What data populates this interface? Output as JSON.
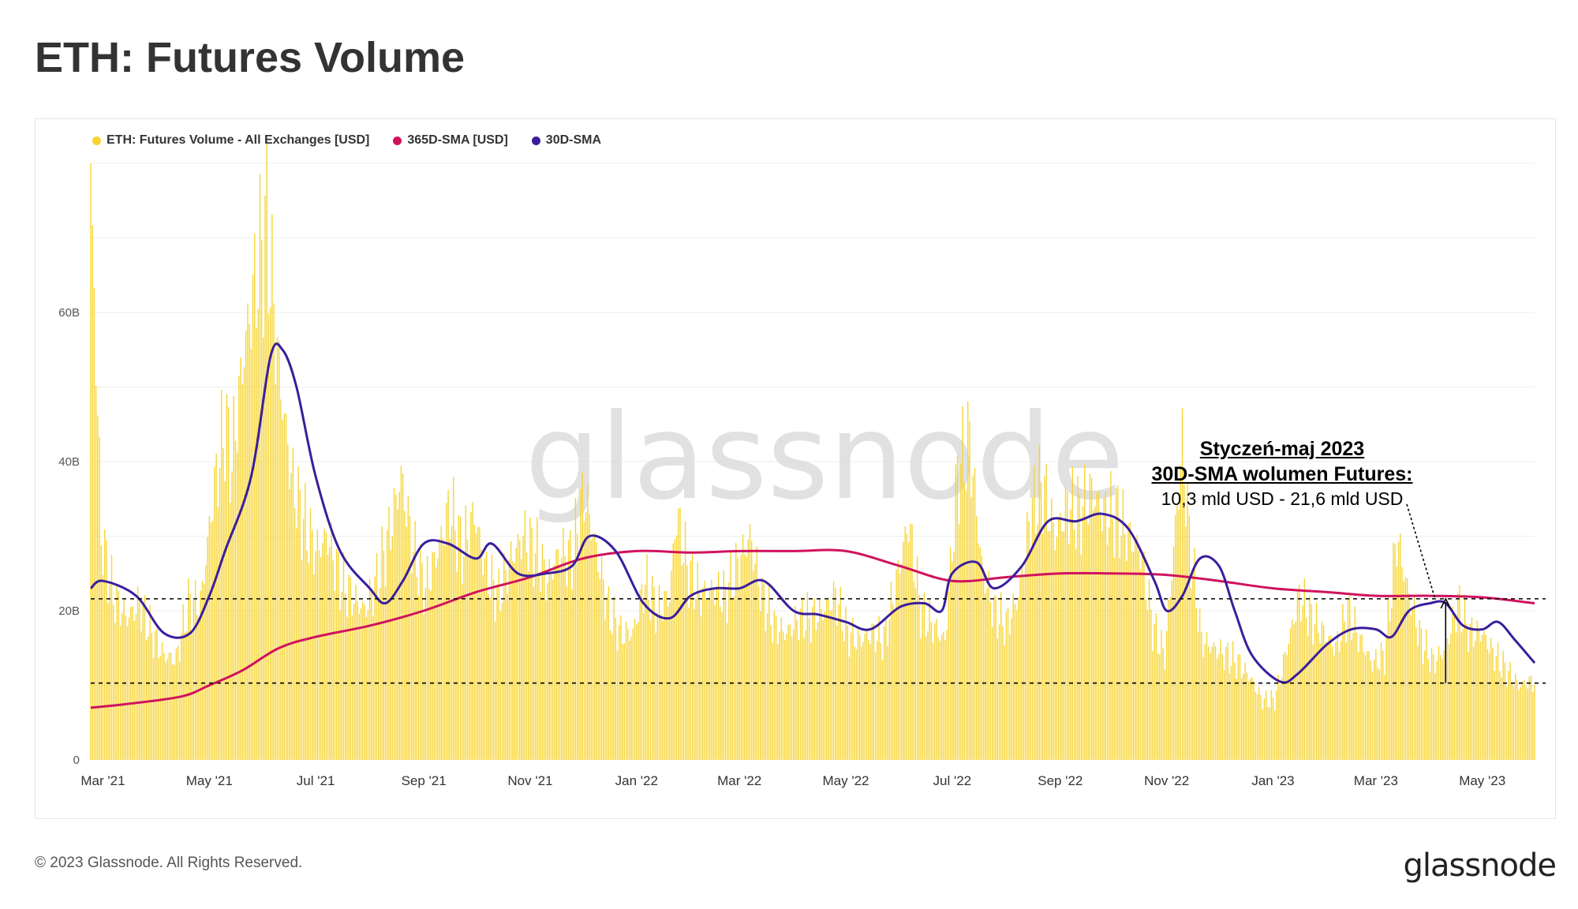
{
  "page": {
    "title": "ETH: Futures Volume",
    "copyright": "© 2023 Glassnode. All Rights Reserved.",
    "brand": "glassnode",
    "watermark": "glassnode"
  },
  "colors": {
    "volume": "#F7D430",
    "sma365": "#D0125E",
    "sma30": "#3A1E9C",
    "grid": "#eeeeee",
    "text": "#333333"
  },
  "annotation": {
    "line1": "Styczeń-maj 2023",
    "line2": "30D-SMA wolumen Futures:",
    "line3": "10,3 mld USD - 21,6 mld USD"
  },
  "chart_data": {
    "type": "bar",
    "x_start": "2021-02-22",
    "x_end": "2023-05-31",
    "ylim": [
      0,
      80000000000
    ],
    "y_ticks": [
      {
        "value": 0,
        "label": "0"
      },
      {
        "value": 20000000000,
        "label": "20B"
      },
      {
        "value": 40000000000,
        "label": "40B"
      },
      {
        "value": 60000000000,
        "label": "60B"
      }
    ],
    "x_ticks": [
      {
        "date": "2021-03-01",
        "label": "Mar '21"
      },
      {
        "date": "2021-05-01",
        "label": "May '21"
      },
      {
        "date": "2021-07-01",
        "label": "Jul '21"
      },
      {
        "date": "2021-09-01",
        "label": "Sep '21"
      },
      {
        "date": "2021-11-01",
        "label": "Nov '21"
      },
      {
        "date": "2022-01-01",
        "label": "Jan '22"
      },
      {
        "date": "2022-03-01",
        "label": "Mar '22"
      },
      {
        "date": "2022-05-01",
        "label": "May '22"
      },
      {
        "date": "2022-07-01",
        "label": "Jul '22"
      },
      {
        "date": "2022-09-01",
        "label": "Sep '22"
      },
      {
        "date": "2022-11-01",
        "label": "Nov '22"
      },
      {
        "date": "2023-01-01",
        "label": "Jan '23"
      },
      {
        "date": "2023-03-01",
        "label": "Mar '23"
      },
      {
        "date": "2023-05-01",
        "label": "May '23"
      }
    ],
    "reference_lines": [
      21600000000,
      10300000000
    ],
    "legend_position": "top-left",
    "grid": true,
    "series": [
      {
        "name": "ETH: Futures Volume - All Exchanges [USD]",
        "type": "bar",
        "values": [
          [
            "2021-02-22",
            80000000000
          ],
          [
            "2021-02-28",
            30000000000
          ],
          [
            "2021-03-07",
            22000000000
          ],
          [
            "2021-03-15",
            19000000000
          ],
          [
            "2021-03-22",
            21000000000
          ],
          [
            "2021-03-29",
            17000000000
          ],
          [
            "2021-04-05",
            14000000000
          ],
          [
            "2021-04-12",
            13500000000
          ],
          [
            "2021-04-19",
            21000000000
          ],
          [
            "2021-04-26",
            21000000000
          ],
          [
            "2021-05-03",
            35000000000
          ],
          [
            "2021-05-10",
            45000000000
          ],
          [
            "2021-05-14",
            40000000000
          ],
          [
            "2021-05-21",
            55000000000
          ],
          [
            "2021-05-28",
            65000000000
          ],
          [
            "2021-06-03",
            72000000000
          ],
          [
            "2021-06-10",
            52000000000
          ],
          [
            "2021-06-17",
            38000000000
          ],
          [
            "2021-06-24",
            32000000000
          ],
          [
            "2021-07-01",
            28000000000
          ],
          [
            "2021-07-08",
            30000000000
          ],
          [
            "2021-07-15",
            24000000000
          ],
          [
            "2021-07-22",
            22000000000
          ],
          [
            "2021-07-29",
            20000000000
          ],
          [
            "2021-08-05",
            24000000000
          ],
          [
            "2021-08-12",
            30000000000
          ],
          [
            "2021-08-19",
            38000000000
          ],
          [
            "2021-08-26",
            28000000000
          ],
          [
            "2021-09-02",
            23000000000
          ],
          [
            "2021-09-09",
            28000000000
          ],
          [
            "2021-09-16",
            34000000000
          ],
          [
            "2021-09-23",
            28000000000
          ],
          [
            "2021-09-30",
            33000000000
          ],
          [
            "2021-10-07",
            25000000000
          ],
          [
            "2021-10-14",
            22000000000
          ],
          [
            "2021-10-21",
            27000000000
          ],
          [
            "2021-10-28",
            30000000000
          ],
          [
            "2021-11-04",
            28000000000
          ],
          [
            "2021-11-11",
            24000000000
          ],
          [
            "2021-11-18",
            28000000000
          ],
          [
            "2021-11-25",
            27000000000
          ],
          [
            "2021-12-02",
            36000000000
          ],
          [
            "2021-12-09",
            28000000000
          ],
          [
            "2021-12-16",
            20000000000
          ],
          [
            "2021-12-23",
            17000000000
          ],
          [
            "2021-12-30",
            17000000000
          ],
          [
            "2022-01-06",
            24000000000
          ],
          [
            "2022-01-13",
            20000000000
          ],
          [
            "2022-01-20",
            22000000000
          ],
          [
            "2022-01-24",
            33000000000
          ],
          [
            "2022-01-31",
            25000000000
          ],
          [
            "2022-02-07",
            22000000000
          ],
          [
            "2022-02-14",
            23000000000
          ],
          [
            "2022-02-21",
            22000000000
          ],
          [
            "2022-02-28",
            26000000000
          ],
          [
            "2022-03-07",
            30000000000
          ],
          [
            "2022-03-14",
            22000000000
          ],
          [
            "2022-03-21",
            18000000000
          ],
          [
            "2022-03-28",
            17000000000
          ],
          [
            "2022-04-04",
            19000000000
          ],
          [
            "2022-04-11",
            19000000000
          ],
          [
            "2022-04-18",
            20000000000
          ],
          [
            "2022-04-25",
            22000000000
          ],
          [
            "2022-05-02",
            17000000000
          ],
          [
            "2022-05-09",
            16000000000
          ],
          [
            "2022-05-16",
            17000000000
          ],
          [
            "2022-05-23",
            16000000000
          ],
          [
            "2022-05-30",
            24000000000
          ],
          [
            "2022-06-06",
            32000000000
          ],
          [
            "2022-06-13",
            20000000000
          ],
          [
            "2022-06-20",
            18000000000
          ],
          [
            "2022-06-27",
            16000000000
          ],
          [
            "2022-07-04",
            38000000000
          ],
          [
            "2022-07-11",
            43000000000
          ],
          [
            "2022-07-18",
            26000000000
          ],
          [
            "2022-07-25",
            20000000000
          ],
          [
            "2022-08-01",
            18000000000
          ],
          [
            "2022-08-08",
            22000000000
          ],
          [
            "2022-08-15",
            33000000000
          ],
          [
            "2022-08-22",
            37000000000
          ],
          [
            "2022-08-29",
            30000000000
          ],
          [
            "2022-09-05",
            34000000000
          ],
          [
            "2022-09-12",
            33000000000
          ],
          [
            "2022-09-19",
            36000000000
          ],
          [
            "2022-09-26",
            33000000000
          ],
          [
            "2022-10-03",
            33000000000
          ],
          [
            "2022-10-10",
            30000000000
          ],
          [
            "2022-10-17",
            28000000000
          ],
          [
            "2022-10-24",
            18000000000
          ],
          [
            "2022-10-31",
            14000000000
          ],
          [
            "2022-11-07",
            34000000000
          ],
          [
            "2022-11-10",
            42000000000
          ],
          [
            "2022-11-14",
            30000000000
          ],
          [
            "2022-11-21",
            16000000000
          ],
          [
            "2022-11-28",
            15000000000
          ],
          [
            "2022-12-05",
            14000000000
          ],
          [
            "2022-12-12",
            13000000000
          ],
          [
            "2022-12-19",
            11000000000
          ],
          [
            "2022-12-26",
            8000000000
          ],
          [
            "2023-01-02",
            8000000000
          ],
          [
            "2023-01-09",
            15000000000
          ],
          [
            "2023-01-16",
            22000000000
          ],
          [
            "2023-01-23",
            19000000000
          ],
          [
            "2023-01-30",
            17000000000
          ],
          [
            "2023-02-06",
            15000000000
          ],
          [
            "2023-02-13",
            20000000000
          ],
          [
            "2023-02-20",
            16000000000
          ],
          [
            "2023-02-27",
            13000000000
          ],
          [
            "2023-03-06",
            14000000000
          ],
          [
            "2023-03-13",
            30000000000
          ],
          [
            "2023-03-20",
            22000000000
          ],
          [
            "2023-03-27",
            16000000000
          ],
          [
            "2023-04-03",
            13000000000
          ],
          [
            "2023-04-10",
            15000000000
          ],
          [
            "2023-04-17",
            21000000000
          ],
          [
            "2023-04-24",
            17000000000
          ],
          [
            "2023-05-01",
            17000000000
          ],
          [
            "2023-05-08",
            14000000000
          ],
          [
            "2023-05-15",
            12000000000
          ],
          [
            "2023-05-22",
            10000000000
          ],
          [
            "2023-05-29",
            10500000000
          ]
        ]
      },
      {
        "name": "365D-SMA [USD]",
        "type": "line",
        "values": [
          [
            "2021-02-22",
            7000000000
          ],
          [
            "2021-03-15",
            7500000000
          ],
          [
            "2021-04-15",
            8500000000
          ],
          [
            "2021-05-01",
            10000000000
          ],
          [
            "2021-05-20",
            12000000000
          ],
          [
            "2021-06-10",
            15000000000
          ],
          [
            "2021-07-01",
            16500000000
          ],
          [
            "2021-08-01",
            18000000000
          ],
          [
            "2021-09-01",
            20000000000
          ],
          [
            "2021-10-01",
            22500000000
          ],
          [
            "2021-11-01",
            24500000000
          ],
          [
            "2021-12-01",
            27000000000
          ],
          [
            "2022-01-01",
            28000000000
          ],
          [
            "2022-02-01",
            27800000000
          ],
          [
            "2022-03-01",
            28000000000
          ],
          [
            "2022-04-01",
            28000000000
          ],
          [
            "2022-05-01",
            28000000000
          ],
          [
            "2022-06-01",
            26000000000
          ],
          [
            "2022-07-01",
            24000000000
          ],
          [
            "2022-08-01",
            24500000000
          ],
          [
            "2022-09-01",
            25000000000
          ],
          [
            "2022-10-01",
            25000000000
          ],
          [
            "2022-11-01",
            24800000000
          ],
          [
            "2022-12-01",
            24000000000
          ],
          [
            "2023-01-01",
            23000000000
          ],
          [
            "2023-02-01",
            22500000000
          ],
          [
            "2023-03-01",
            22000000000
          ],
          [
            "2023-04-01",
            22000000000
          ],
          [
            "2023-05-01",
            21800000000
          ],
          [
            "2023-05-31",
            21000000000
          ]
        ]
      },
      {
        "name": "30D-SMA",
        "type": "line",
        "values": [
          [
            "2021-02-22",
            23000000000
          ],
          [
            "2021-03-01",
            24000000000
          ],
          [
            "2021-03-20",
            22000000000
          ],
          [
            "2021-04-05",
            17000000000
          ],
          [
            "2021-04-20",
            17000000000
          ],
          [
            "2021-05-01",
            22000000000
          ],
          [
            "2021-05-10",
            28000000000
          ],
          [
            "2021-05-25",
            38000000000
          ],
          [
            "2021-06-05",
            54000000000
          ],
          [
            "2021-06-12",
            55000000000
          ],
          [
            "2021-06-20",
            50000000000
          ],
          [
            "2021-07-01",
            38000000000
          ],
          [
            "2021-07-15",
            28000000000
          ],
          [
            "2021-08-01",
            23000000000
          ],
          [
            "2021-08-10",
            21000000000
          ],
          [
            "2021-08-20",
            24000000000
          ],
          [
            "2021-09-01",
            29000000000
          ],
          [
            "2021-09-15",
            29000000000
          ],
          [
            "2021-10-01",
            27000000000
          ],
          [
            "2021-10-10",
            29000000000
          ],
          [
            "2021-10-25",
            25000000000
          ],
          [
            "2021-11-10",
            25000000000
          ],
          [
            "2021-11-25",
            26000000000
          ],
          [
            "2021-12-05",
            30000000000
          ],
          [
            "2021-12-20",
            28000000000
          ],
          [
            "2022-01-05",
            21000000000
          ],
          [
            "2022-01-20",
            19000000000
          ],
          [
            "2022-02-01",
            22000000000
          ],
          [
            "2022-02-15",
            23000000000
          ],
          [
            "2022-03-01",
            23000000000
          ],
          [
            "2022-03-15",
            24000000000
          ],
          [
            "2022-04-01",
            20000000000
          ],
          [
            "2022-04-15",
            19500000000
          ],
          [
            "2022-05-01",
            18500000000
          ],
          [
            "2022-05-15",
            17500000000
          ],
          [
            "2022-06-01",
            20500000000
          ],
          [
            "2022-06-15",
            21000000000
          ],
          [
            "2022-06-25",
            20000000000
          ],
          [
            "2022-07-01",
            25000000000
          ],
          [
            "2022-07-15",
            26500000000
          ],
          [
            "2022-07-25",
            23000000000
          ],
          [
            "2022-08-10",
            26000000000
          ],
          [
            "2022-08-25",
            32000000000
          ],
          [
            "2022-09-10",
            32000000000
          ],
          [
            "2022-09-25",
            33000000000
          ],
          [
            "2022-10-10",
            31000000000
          ],
          [
            "2022-10-25",
            24000000000
          ],
          [
            "2022-11-01",
            20000000000
          ],
          [
            "2022-11-10",
            22000000000
          ],
          [
            "2022-11-20",
            27000000000
          ],
          [
            "2022-12-01",
            26000000000
          ],
          [
            "2022-12-10",
            20000000000
          ],
          [
            "2022-12-20",
            14000000000
          ],
          [
            "2023-01-05",
            10500000000
          ],
          [
            "2023-01-15",
            11500000000
          ],
          [
            "2023-02-01",
            15500000000
          ],
          [
            "2023-02-15",
            17500000000
          ],
          [
            "2023-03-01",
            17500000000
          ],
          [
            "2023-03-10",
            16500000000
          ],
          [
            "2023-03-20",
            20000000000
          ],
          [
            "2023-04-01",
            21000000000
          ],
          [
            "2023-04-10",
            21000000000
          ],
          [
            "2023-04-20",
            18000000000
          ],
          [
            "2023-05-01",
            17500000000
          ],
          [
            "2023-05-10",
            18500000000
          ],
          [
            "2023-05-20",
            16000000000
          ],
          [
            "2023-05-31",
            13000000000
          ]
        ]
      }
    ]
  }
}
